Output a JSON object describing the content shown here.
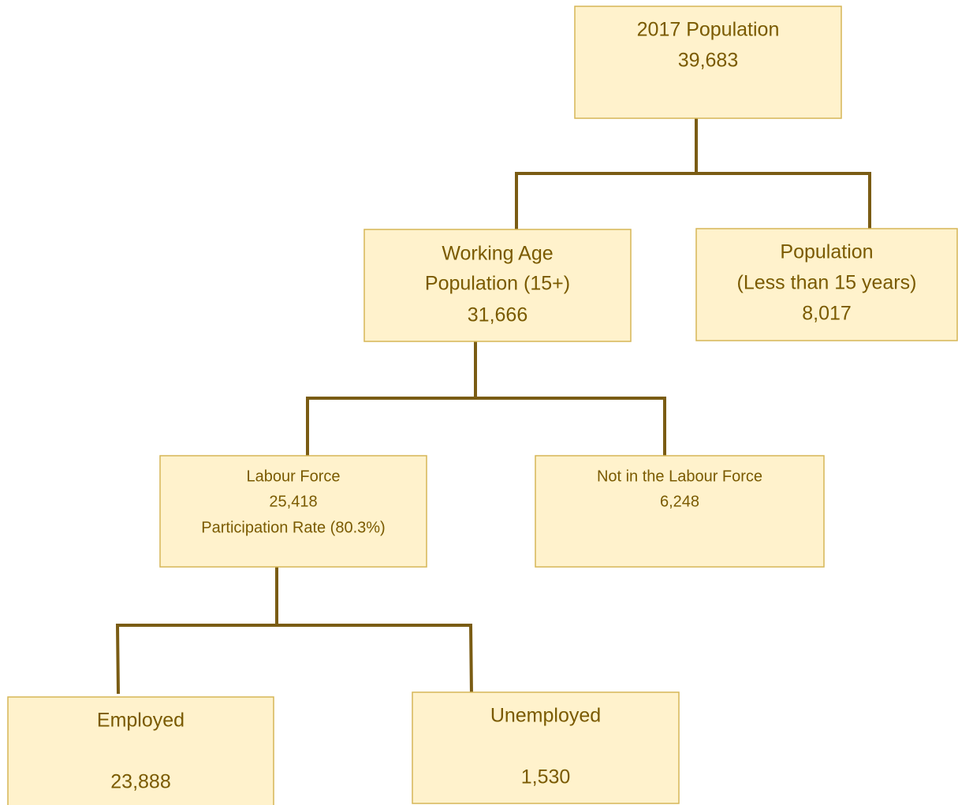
{
  "nodes": [
    {
      "lines": [
        "2017 Population",
        "39,683"
      ]
    },
    {
      "lines": [
        "Working Age",
        "Population (15+)",
        "31,666"
      ]
    },
    {
      "lines": [
        "Population",
        "(Less than 15 years)",
        "8,017"
      ]
    },
    {
      "lines": [
        "Labour Force",
        "25,418",
        "Participation Rate (80.3%)"
      ]
    },
    {
      "lines": [
        "Not in the Labour Force",
        "6,248"
      ]
    },
    {
      "lines": [
        "Employed",
        "23,888"
      ]
    },
    {
      "lines": [
        "Unemployed",
        "1,530"
      ]
    }
  ]
}
